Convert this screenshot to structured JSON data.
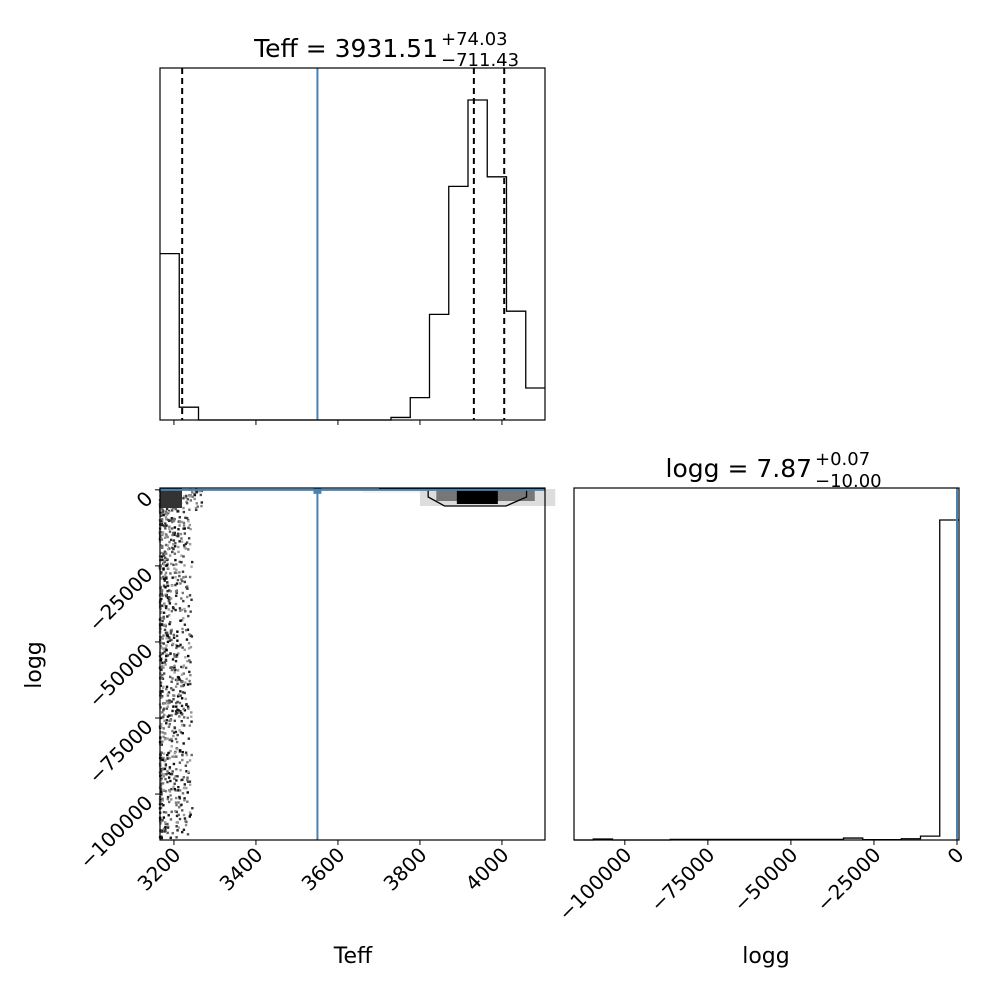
{
  "chart_data": [
    {
      "type": "histogram",
      "panel": "top-left",
      "title_main": "Teff = 3931.51",
      "title_plus": "+74.03",
      "title_minus": "−711.43",
      "xlim": [
        3166,
        4105
      ],
      "bins": 20,
      "relative_counts": [
        0.52,
        0.04,
        0,
        0,
        0,
        0,
        0,
        0,
        0,
        0,
        0,
        0,
        0.008,
        0.07,
        0.33,
        0.73,
        1.0,
        0.76,
        0.34,
        0.1
      ],
      "quantiles": [
        3220.08,
        3931.51,
        4005.54
      ],
      "truth": 3550,
      "truth_color": "#4682b4",
      "xticks": [
        3200,
        3400,
        3600,
        3800,
        4000
      ]
    },
    {
      "type": "scatter",
      "panel": "bottom-left",
      "xlabel": "Teff",
      "ylabel": "logg",
      "xlim": [
        3166,
        4105
      ],
      "ylim": [
        -115100,
        600
      ],
      "xticks": [
        3200,
        3400,
        3600,
        3800,
        4000
      ],
      "xtick_labels": [
        "3200",
        "3400",
        "3600",
        "3800",
        "4000"
      ],
      "yticks": [
        0,
        -25000,
        -50000,
        -75000,
        -100000
      ],
      "ytick_labels": [
        "0",
        "−25000",
        "−50000",
        "−75000",
        "−100000"
      ],
      "truth": {
        "Teff": 3550,
        "logg": 0
      },
      "truth_color": "#4682b4",
      "density_peak": {
        "Teff": 3950,
        "logg": 0
      },
      "scatter_region": {
        "Teff": [
          3166,
          3245
        ],
        "logg": [
          -115000,
          0
        ]
      }
    },
    {
      "type": "histogram",
      "panel": "bottom-right",
      "title_main": "logg = 7.87",
      "title_plus": "+0.07",
      "title_minus": "−10.00",
      "xlabel": "logg",
      "xlim": [
        -115300,
        600
      ],
      "bins": 20,
      "relative_counts": [
        0,
        0.003,
        0,
        0,
        0,
        0.002,
        0.002,
        0.002,
        0.002,
        0.002,
        0.002,
        0.002,
        0.002,
        0.002,
        0.006,
        0.001,
        0.001,
        0.004,
        0.012,
        1.0
      ],
      "truth": 0,
      "truth_color": "#4682b4",
      "xticks": [
        -100000,
        -75000,
        -50000,
        -25000,
        0
      ],
      "xtick_labels": [
        "−100000",
        "−75000",
        "−50000",
        "−25000",
        "0"
      ]
    }
  ]
}
